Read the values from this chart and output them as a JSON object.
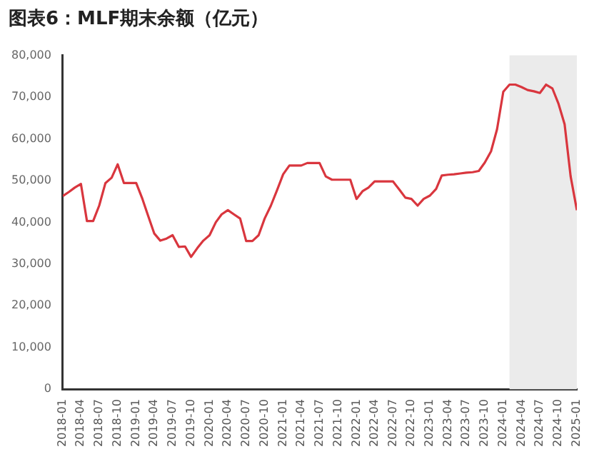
{
  "chart_data": {
    "type": "line",
    "title": "图表6：MLF期末余额（亿元）",
    "x": [
      "2018-01",
      "2018-02",
      "2018-03",
      "2018-04",
      "2018-05",
      "2018-06",
      "2018-07",
      "2018-08",
      "2018-09",
      "2018-10",
      "2018-11",
      "2018-12",
      "2019-01",
      "2019-02",
      "2019-03",
      "2019-04",
      "2019-05",
      "2019-06",
      "2019-07",
      "2019-08",
      "2019-09",
      "2019-10",
      "2019-11",
      "2019-12",
      "2020-01",
      "2020-02",
      "2020-03",
      "2020-04",
      "2020-05",
      "2020-06",
      "2020-07",
      "2020-08",
      "2020-09",
      "2020-10",
      "2020-11",
      "2020-12",
      "2021-01",
      "2021-02",
      "2021-03",
      "2021-04",
      "2021-05",
      "2021-06",
      "2021-07",
      "2021-08",
      "2021-09",
      "2021-10",
      "2021-11",
      "2021-12",
      "2022-01",
      "2022-02",
      "2022-03",
      "2022-04",
      "2022-05",
      "2022-06",
      "2022-07",
      "2022-08",
      "2022-09",
      "2022-10",
      "2022-11",
      "2022-12",
      "2023-01",
      "2023-02",
      "2023-03",
      "2023-04",
      "2023-05",
      "2023-06",
      "2023-07",
      "2023-08",
      "2023-09",
      "2023-10",
      "2023-11",
      "2023-12",
      "2024-01",
      "2024-02",
      "2024-03",
      "2024-04",
      "2024-05",
      "2024-06",
      "2024-07",
      "2024-08",
      "2024-09",
      "2024-10",
      "2024-11",
      "2024-12",
      "2025-01"
    ],
    "series": [
      {
        "color": "#d9363e",
        "values": [
          46300,
          47300,
          48300,
          49200,
          40300,
          40300,
          44000,
          49400,
          50700,
          53900,
          49400,
          49400,
          49400,
          45600,
          41600,
          37300,
          35600,
          36100,
          36900,
          34100,
          34200,
          31700,
          33800,
          35600,
          36900,
          40000,
          41900,
          42900,
          41900,
          40900,
          35500,
          35500,
          36900,
          40900,
          44000,
          47600,
          51500,
          53600,
          53600,
          53600,
          54200,
          54200,
          54200,
          51000,
          50200,
          50200,
          50200,
          50200,
          45600,
          47500,
          48300,
          49800,
          49800,
          49800,
          49800,
          47900,
          45900,
          45600,
          44000,
          45600,
          46400,
          48000,
          51200,
          51400,
          51500,
          51700,
          51900,
          52000,
          52300,
          54300,
          57000,
          62300,
          71300,
          73000,
          73000,
          72400,
          71700,
          71400,
          71000,
          73000,
          72100,
          68500,
          63500,
          51000,
          42900
        ]
      }
    ],
    "xlim": [
      "2018-01",
      "2025-01"
    ],
    "xticks": [
      "2018-01",
      "2018-04",
      "2018-07",
      "2018-10",
      "2019-01",
      "2019-04",
      "2019-07",
      "2019-10",
      "2020-01",
      "2020-04",
      "2020-07",
      "2020-10",
      "2021-01",
      "2021-04",
      "2021-07",
      "2021-10",
      "2022-01",
      "2022-04",
      "2022-07",
      "2022-10",
      "2023-01",
      "2023-04",
      "2023-07",
      "2023-10",
      "2024-01",
      "2024-04",
      "2024-07",
      "2024-10",
      "2025-01"
    ],
    "ylim": [
      0,
      80000
    ],
    "yticks": [
      {
        "value": 0,
        "label": "0"
      },
      {
        "value": 10000,
        "label": "10,000"
      },
      {
        "value": 20000,
        "label": "20,000"
      },
      {
        "value": 30000,
        "label": "30,000"
      },
      {
        "value": 40000,
        "label": "40,000"
      },
      {
        "value": 50000,
        "label": "50,000"
      },
      {
        "value": 60000,
        "label": "60,000"
      },
      {
        "value": 70000,
        "label": "70,000"
      },
      {
        "value": 80000,
        "label": "80,000"
      }
    ],
    "bands": [
      {
        "axis": "x",
        "from": "2024-02",
        "to": "2025-01",
        "color": "#ebebeb"
      }
    ],
    "grid": false,
    "legend": false,
    "marker": "none",
    "line_style": "solid"
  }
}
